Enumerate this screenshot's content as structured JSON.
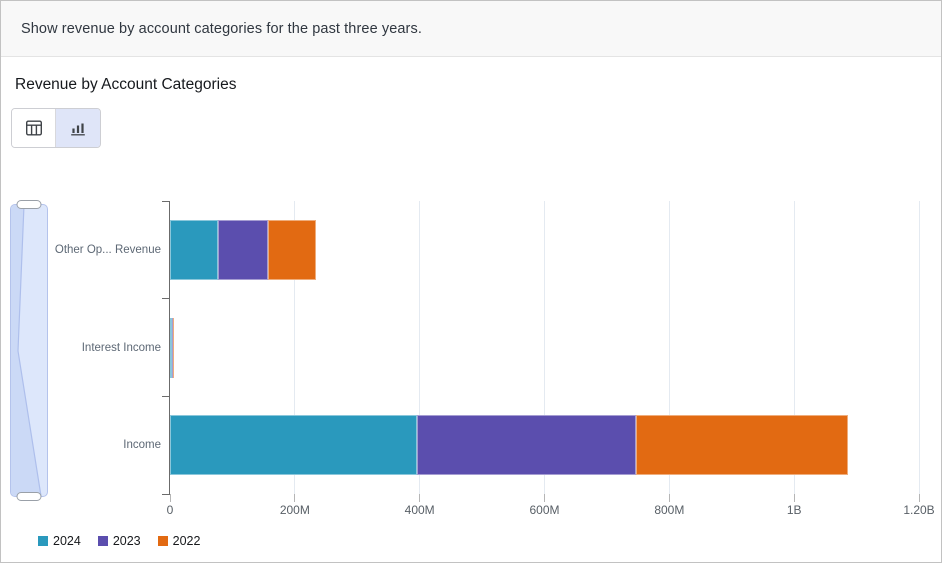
{
  "prompt_bar": {
    "text": "Show revenue by account categories for the past three years."
  },
  "panel": {
    "title": "Revenue by Account Categories"
  },
  "view_toggle": {
    "table_button": {
      "icon": "table-icon",
      "selected": false
    },
    "chart_button": {
      "icon": "bar-chart-icon",
      "selected": true
    }
  },
  "chart_data": {
    "type": "bar",
    "orientation": "horizontal",
    "stacked": true,
    "title": "Revenue by Account Categories",
    "categories": [
      "Other Op... Revenue",
      "Interest Income",
      "Income"
    ],
    "series": [
      {
        "name": "2024",
        "color": "#2A99BD",
        "values": [
          77,
          3,
          395
        ]
      },
      {
        "name": "2023",
        "color": "#5B4EAE",
        "values": [
          80,
          2,
          352
        ]
      },
      {
        "name": "2022",
        "color": "#E26A12",
        "values": [
          77,
          2,
          339
        ]
      }
    ],
    "value_unit": "millions",
    "x_axis": {
      "tick_labels": [
        "0",
        "200M",
        "400M",
        "600M",
        "800M",
        "1B",
        "1.20B"
      ],
      "tick_values": [
        0,
        200,
        400,
        600,
        800,
        1000,
        1200
      ],
      "range": [
        0,
        1200
      ]
    },
    "grid": true,
    "legend_position": "bottom-left",
    "category_totals": [
      234,
      7,
      1086
    ]
  },
  "colors": {
    "axis_line": "#6b6b6b",
    "gridline": "#e4eaf1",
    "label_text": "#5d6875",
    "scrollbar_fill": "#dde7fb",
    "scrollbar_dark": "#cbd9f6",
    "scrollbar_border": "#b4c3ec",
    "toggle_selected_bg": "#dfe5f8",
    "prompt_bar_bg": "#f8f8f8"
  }
}
